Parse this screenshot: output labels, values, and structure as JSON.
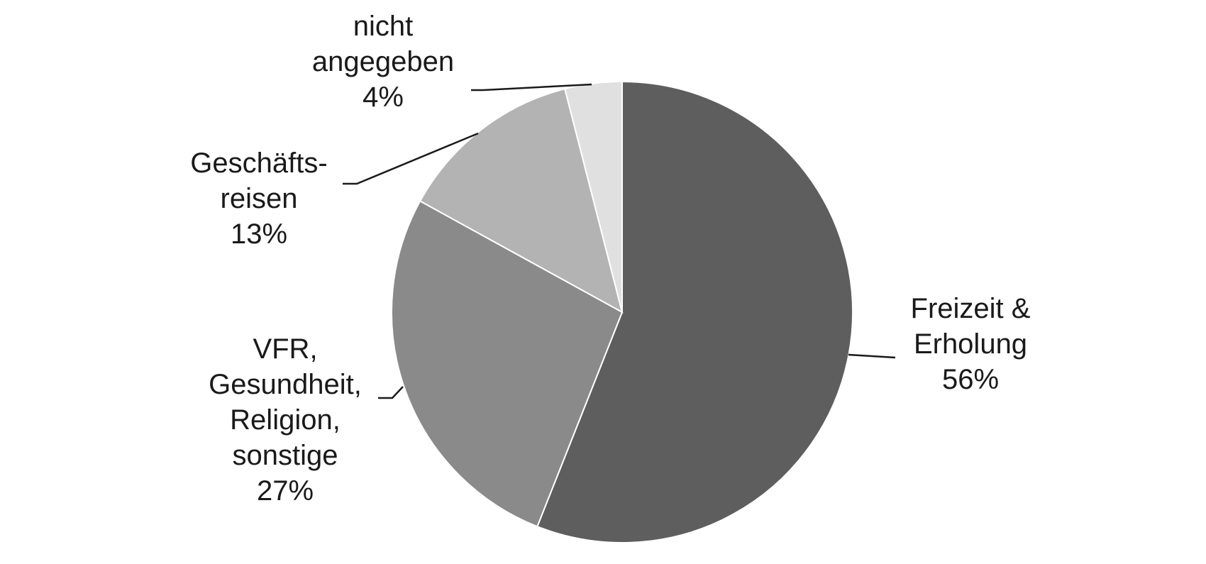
{
  "chart_data": {
    "type": "pie",
    "title": "",
    "start_angle_deg": 0,
    "direction": "clockwise",
    "slices": [
      {
        "label_lines": [
          "Freizeit &",
          "Erholung"
        ],
        "value": 56,
        "value_label": "56%",
        "color": "#5e5e5e"
      },
      {
        "label_lines": [
          "VFR,",
          "Gesundheit,",
          "Religion,",
          "sonstige"
        ],
        "value": 27,
        "value_label": "27%",
        "color": "#8a8a8a"
      },
      {
        "label_lines": [
          "Geschäfts-",
          "reisen"
        ],
        "value": 13,
        "value_label": "13%",
        "color": "#b3b3b3"
      },
      {
        "label_lines": [
          "nicht",
          "angegeben"
        ],
        "value": 4,
        "value_label": "4%",
        "color": "#e0e0e0"
      }
    ]
  }
}
